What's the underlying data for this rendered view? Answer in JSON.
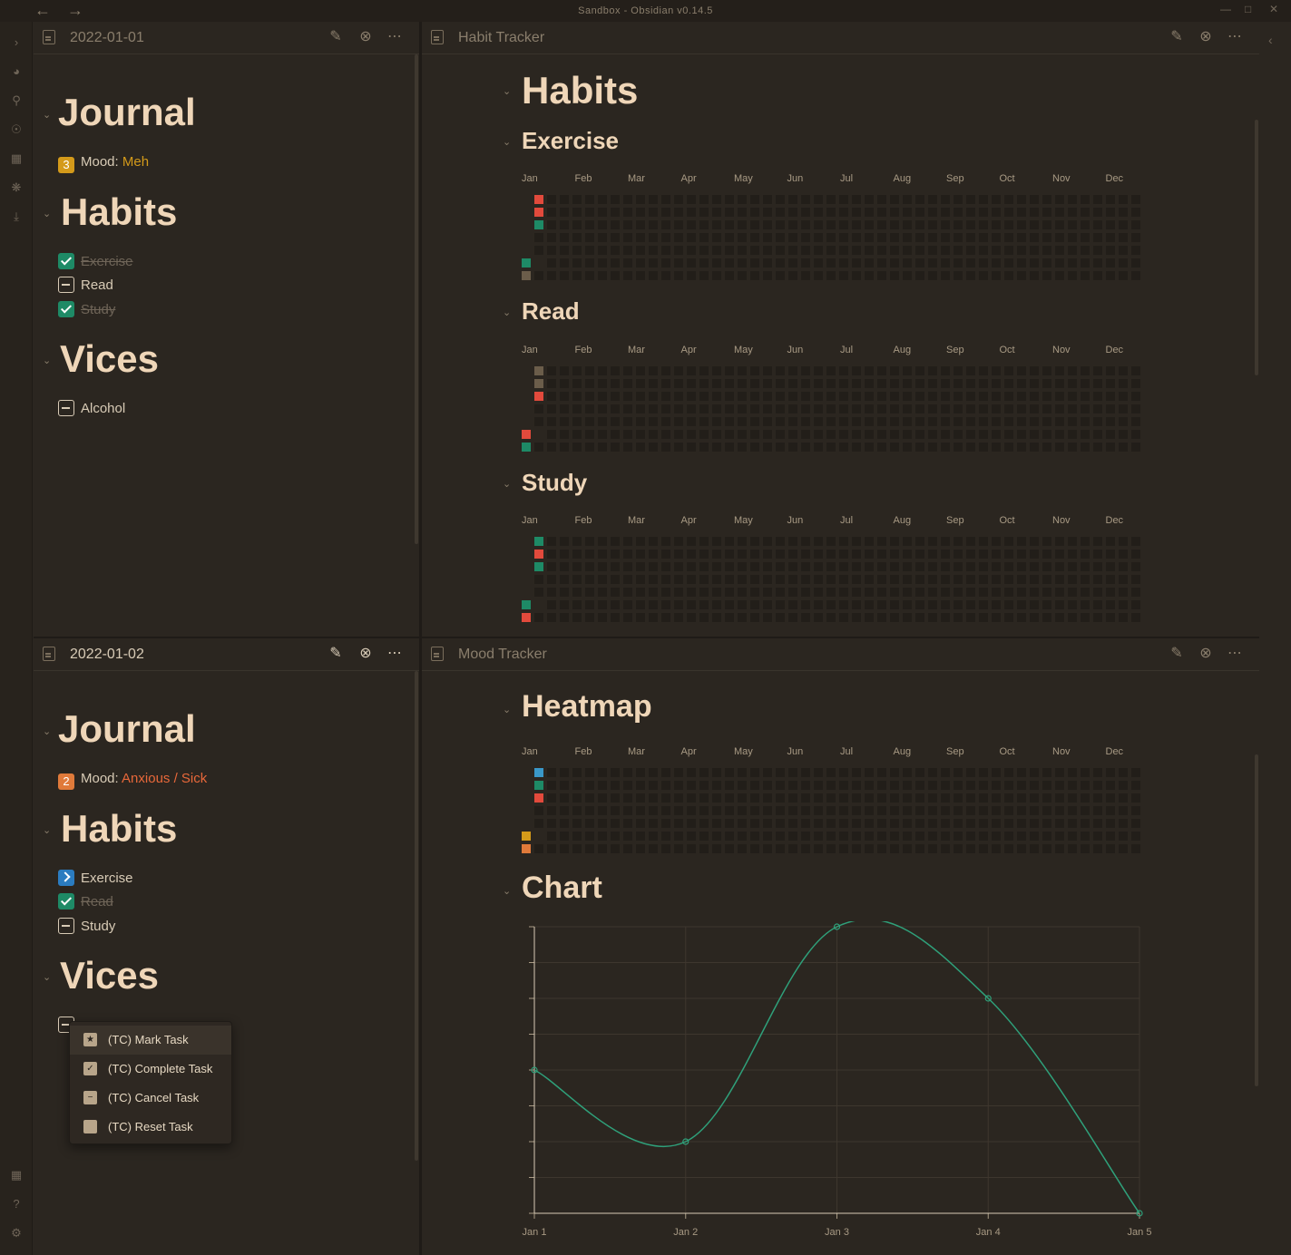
{
  "app": {
    "title": "Sandbox - Obsidian v0.14.5"
  },
  "colors": {
    "accent_orange": "#e07a3a",
    "accent_yellow": "#d49a1a",
    "green": "#1e8a66",
    "red": "#e24a3c",
    "blue": "#3a98c8",
    "gray": "#6b5d4a",
    "bg": "#2b2620"
  },
  "panes": {
    "top_left": {
      "title": "2022-01-01",
      "journal": "Journal",
      "mood_badge": "3",
      "mood_label": "Mood:",
      "mood_value": "Meh",
      "habits": "Habits",
      "habit_items": [
        "Exercise",
        "Read",
        "Study"
      ],
      "vices": "Vices",
      "vice_items": [
        "Alcohol"
      ]
    },
    "bottom_left": {
      "title": "2022-01-02",
      "journal": "Journal",
      "mood_badge": "2",
      "mood_label": "Mood:",
      "mood_value": "Anxious / Sick",
      "habits": "Habits",
      "habit_items": [
        "Exercise",
        "Read",
        "Study"
      ],
      "vices": "Vices"
    },
    "top_right": {
      "title": "Habit Tracker",
      "h1": "Habits",
      "sections": [
        "Exercise",
        "Read",
        "Study"
      ]
    },
    "bottom_right": {
      "title": "Mood Tracker",
      "heatmap_title": "Heatmap",
      "chart_title": "Chart"
    }
  },
  "months": [
    "Jan",
    "Feb",
    "Mar",
    "Apr",
    "May",
    "Jun",
    "Jul",
    "Aug",
    "Sep",
    "Oct",
    "Nov",
    "Dec"
  ],
  "heatmaps": {
    "exercise": [
      {
        "date": "2022-01-01",
        "color": "#e24a3c"
      },
      {
        "date": "2022-01-02",
        "color": "#e24a3c"
      },
      {
        "date": "2022-01-03",
        "color": "#1e8a66"
      },
      {
        "date": "2022-01-06",
        "color": "#1e8a66"
      },
      {
        "date": "2022-01-07",
        "color": "#6b5d4a"
      }
    ],
    "read": [
      {
        "date": "2022-01-01",
        "color": "#6b5d4a"
      },
      {
        "date": "2022-01-02",
        "color": "#6b5d4a"
      },
      {
        "date": "2022-01-03",
        "color": "#e24a3c"
      },
      {
        "date": "2022-01-06",
        "color": "#e24a3c"
      },
      {
        "date": "2022-01-07",
        "color": "#1e8a66"
      }
    ],
    "study": [
      {
        "date": "2022-01-01",
        "color": "#1e8a66"
      },
      {
        "date": "2022-01-02",
        "color": "#e24a3c"
      },
      {
        "date": "2022-01-03",
        "color": "#1e8a66"
      },
      {
        "date": "2022-01-06",
        "color": "#1e8a66"
      },
      {
        "date": "2022-01-07",
        "color": "#e24a3c"
      }
    ],
    "mood": [
      {
        "date": "2022-01-01",
        "color": "#3a98c8"
      },
      {
        "date": "2022-01-02",
        "color": "#1e8a66"
      },
      {
        "date": "2022-01-03",
        "color": "#e24a3c"
      },
      {
        "date": "2022-01-06",
        "color": "#d49a1a"
      },
      {
        "date": "2022-01-07",
        "color": "#e07a3a"
      }
    ]
  },
  "context_menu": {
    "items": [
      {
        "label": "(TC) Mark Task",
        "icon": "star-icon"
      },
      {
        "label": "(TC) Complete Task",
        "icon": "check-icon"
      },
      {
        "label": "(TC) Cancel Task",
        "icon": "minus-icon"
      },
      {
        "label": "(TC) Reset Task",
        "icon": "empty-square-icon"
      }
    ]
  },
  "chart_data": {
    "type": "line",
    "categories": [
      "Jan 1",
      "Jan 2",
      "Jan 3",
      "Jan 4",
      "Jan 5"
    ],
    "series": [
      {
        "values": [
          4,
          2,
          8,
          6,
          0
        ],
        "color": "#2fa07a"
      }
    ],
    "ylim": [
      0,
      8
    ],
    "grid": true
  }
}
